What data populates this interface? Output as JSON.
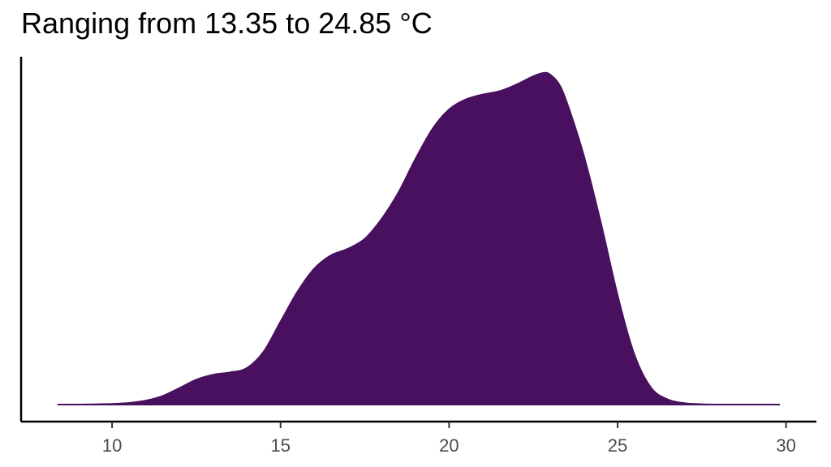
{
  "chart_data": {
    "type": "area",
    "title": "Ranging from 13.35 to 24.85 °C",
    "xlabel": "",
    "ylabel": "",
    "xlim": [
      7.3,
      30.9
    ],
    "ylim": [
      0,
      1.05
    ],
    "xticks": [
      10,
      15,
      20,
      25,
      30
    ],
    "xtick_labels": [
      "10",
      "15",
      "20",
      "25",
      "30"
    ],
    "y_axis_ticks": false,
    "grid": false,
    "legend": "none",
    "fill_color": "#48105e",
    "series": [
      {
        "x": [
          8.4,
          9,
          10,
          10.5,
          11,
          11.5,
          12,
          12.5,
          13,
          13.5,
          14,
          14.5,
          15,
          15.5,
          16,
          16.5,
          17,
          17.5,
          18,
          18.5,
          19,
          19.5,
          20,
          20.5,
          21,
          21.5,
          22,
          22.5,
          22.8,
          23,
          23.3,
          23.6,
          24,
          24.5,
          25,
          25.5,
          26,
          26.5,
          27,
          27.5,
          28,
          29,
          29.8
        ],
        "y": [
          0.0,
          0.0,
          0.002,
          0.005,
          0.012,
          0.026,
          0.05,
          0.075,
          0.09,
          0.097,
          0.11,
          0.16,
          0.25,
          0.34,
          0.41,
          0.45,
          0.47,
          0.5,
          0.56,
          0.64,
          0.74,
          0.83,
          0.89,
          0.92,
          0.935,
          0.945,
          0.965,
          0.99,
          1.0,
          0.995,
          0.96,
          0.88,
          0.75,
          0.55,
          0.33,
          0.15,
          0.05,
          0.015,
          0.004,
          0.001,
          0.0,
          0.0,
          0.0
        ]
      }
    ]
  }
}
